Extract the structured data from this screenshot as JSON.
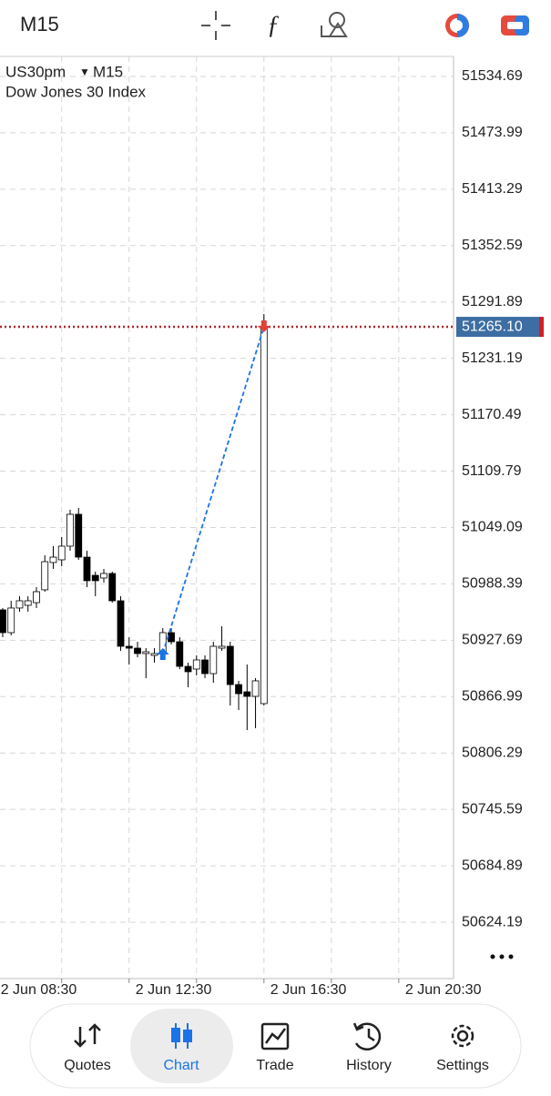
{
  "top_bar": {
    "timeframe": "M15"
  },
  "chart_data": {
    "type": "candlestick",
    "symbol": "US30pm",
    "timeframe": "M15",
    "title": "Dow Jones 30 Index",
    "open": [
      50960.4,
      50935.9,
      50962.4,
      50965.3,
      50968.2,
      50982.0,
      51011.4,
      51014.3,
      51029.0,
      51063.3,
      51017.2,
      50997.6,
      50994.7,
      50999.6,
      50970.2,
      50921.2,
      50919.2,
      50913.4,
      50911.4,
      50913.4,
      50935.9,
      50926.1,
      50899.6,
      50896.7,
      50906.5,
      50891.8,
      50919.2,
      50921.2,
      50880.0,
      50872.2,
      50867.3,
      50859.5
    ],
    "high": [
      50962.4,
      50970.2,
      50975.1,
      50975.1,
      50984.9,
      51019.2,
      51029.0,
      51038.8,
      51068.2,
      51070.2,
      51024.1,
      51001.6,
      51004.5,
      51001.6,
      50975.1,
      50931.0,
      50926.1,
      50919.2,
      50919.2,
      50940.8,
      50940.8,
      50931.0,
      50903.6,
      50911.4,
      50911.4,
      50926.1,
      50942.8,
      50926.1,
      50884.0,
      50901.6,
      50886.9,
      51278.9
    ],
    "low": [
      50931.0,
      50933.0,
      50958.4,
      50958.4,
      50962.4,
      50980.0,
      51004.5,
      51007.4,
      51024.1,
      51014.3,
      50984.9,
      50975.1,
      50989.8,
      50968.2,
      50916.3,
      50901.6,
      50909.4,
      50886.9,
      50903.6,
      50909.4,
      50923.2,
      50896.7,
      50877.1,
      50889.8,
      50886.9,
      50882.0,
      50916.3,
      50857.5,
      50852.6,
      50831.0,
      50833.0,
      50857.5
    ],
    "close": [
      50935.9,
      50962.4,
      50970.2,
      50970.2,
      50980.0,
      51012.3,
      51017.2,
      51029.0,
      51063.3,
      51017.2,
      50991.8,
      50991.8,
      50999.6,
      50970.2,
      50921.2,
      50919.2,
      50913.4,
      50915.3,
      50913.4,
      50935.9,
      50926.1,
      50899.6,
      50893.8,
      50906.5,
      50891.8,
      50921.2,
      50921.2,
      50880.0,
      50870.2,
      50867.3,
      50884.0,
      51265.1
    ],
    "up_color": "#ffffff",
    "down_color": "#000000",
    "ylim": [
      50563.5,
      51556.2
    ],
    "yticks": [
      51534.69,
      51473.99,
      51413.29,
      51352.59,
      51291.89,
      51231.19,
      51170.49,
      51109.79,
      51049.09,
      50988.39,
      50927.69,
      50866.99,
      50806.29,
      50745.59,
      50684.89,
      50624.19
    ],
    "xlim": [
      -0.32,
      53.5
    ],
    "xticks": [
      {
        "value": -1,
        "label": "2 Jun 08:30"
      },
      {
        "value": 7,
        "label": null
      },
      {
        "value": 15,
        "label": "2 Jun 12:30"
      },
      {
        "value": 23,
        "label": null
      },
      {
        "value": 31,
        "label": "2 Jun 16:30"
      },
      {
        "value": 39,
        "label": null
      },
      {
        "value": 47,
        "label": "2 Jun 20:30"
      }
    ],
    "grid": true,
    "current_price": {
      "value": 51265.1,
      "label": "51265.10"
    },
    "price_line_color": "#b0262b",
    "trade": {
      "entry": 50913.4,
      "exit": 51265.1
    }
  },
  "nav": {
    "items": [
      "Quotes",
      "Chart",
      "Trade",
      "History",
      "Settings"
    ],
    "active": 1
  }
}
